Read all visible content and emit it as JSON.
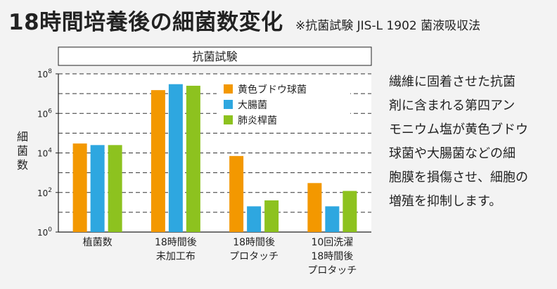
{
  "header": {
    "title": "18時間培養後の細菌数変化",
    "subtitle": "※抗菌試験 JIS-L 1902 菌液吸収法"
  },
  "description": {
    "lines": [
      "繊維に固着させた抗菌",
      "剤に含まれる第四アン",
      "モニウム塩が黄色ブドウ",
      "球菌や大腸菌などの細",
      "胞膜を損傷させ、細胞の",
      "増殖を抑制します。"
    ]
  },
  "chart_data": {
    "type": "bar",
    "title": "抗菌試験",
    "ylabel": "細菌数",
    "y_scale": "log10",
    "ylim": [
      1,
      100000000
    ],
    "y_ticks": [
      {
        "base": "10",
        "exp": "0"
      },
      {
        "base": "10",
        "exp": "2"
      },
      {
        "base": "10",
        "exp": "4"
      },
      {
        "base": "10",
        "exp": "6"
      },
      {
        "base": "10",
        "exp": "8"
      }
    ],
    "grid": "horizontal dashed",
    "legend_position": "top-right",
    "categories": [
      [
        "植菌数"
      ],
      [
        "18時間後",
        "未加工布"
      ],
      [
        "18時間後",
        "プロタッチ"
      ],
      [
        "10回洗濯",
        "18時間後",
        "プロタッチ"
      ]
    ],
    "series": [
      {
        "name": "黄色ブドウ球菌",
        "color": "#f39800",
        "values": [
          30000,
          15000000,
          7000,
          300
        ]
      },
      {
        "name": "大腸菌",
        "color": "#2ea7e0",
        "values": [
          25000,
          30000000,
          20,
          20
        ]
      },
      {
        "name": "肺炎桿菌",
        "color": "#8dc21f",
        "values": [
          25000,
          25000000,
          40,
          120
        ]
      }
    ]
  }
}
